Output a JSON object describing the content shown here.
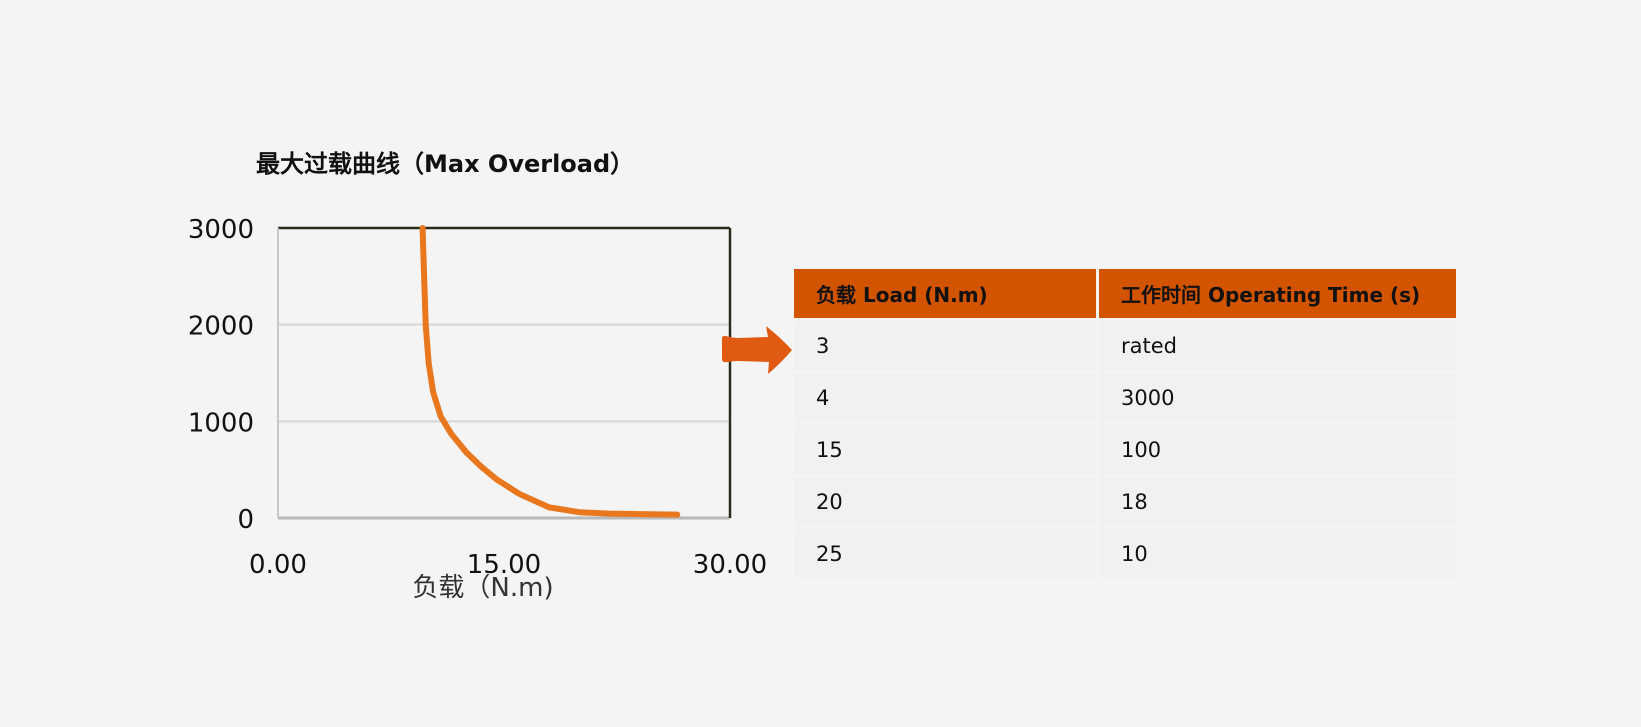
{
  "chart_data": {
    "type": "line",
    "title": "最大过载曲线（Max Overload）",
    "xlabel": "负载（N.m)",
    "ylabel": "",
    "xlim": [
      0,
      30
    ],
    "ylim": [
      0,
      3000
    ],
    "x_ticks": [
      "0.00",
      "15.00",
      "30.00"
    ],
    "y_ticks": [
      "0",
      "1000",
      "2000",
      "3000"
    ],
    "grid": "horizontal",
    "legend": "none",
    "line_color": "#e8771e",
    "series": [
      {
        "x": [
          9.6,
          9.7,
          9.8,
          10.0,
          10.3,
          10.8,
          11.5,
          12.5,
          13.5,
          14.5,
          16.0,
          18.0,
          20.0,
          22.0,
          24.0,
          26.5
        ],
        "y": [
          3000,
          2500,
          2000,
          1600,
          1300,
          1050,
          870,
          680,
          530,
          400,
          250,
          110,
          60,
          45,
          40,
          35
        ]
      }
    ]
  },
  "table": {
    "header_color": "#d35400",
    "headers": [
      "负载 Load (N.m)",
      "工作时间 Operating Time (s)"
    ],
    "rows": [
      [
        "3",
        "rated"
      ],
      [
        "4",
        "3000"
      ],
      [
        "15",
        "100"
      ],
      [
        "20",
        "18"
      ],
      [
        "25",
        "10"
      ]
    ]
  }
}
